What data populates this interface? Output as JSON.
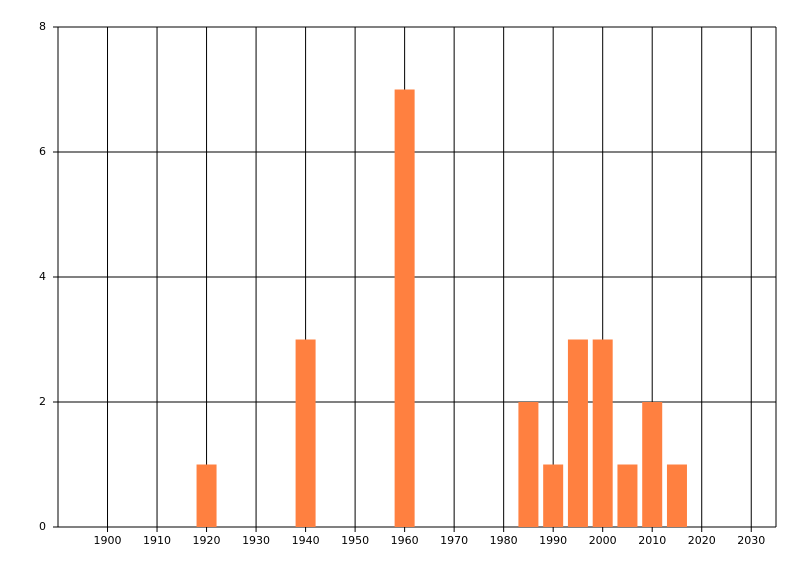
{
  "chart_data": {
    "type": "bar",
    "x": [
      1920,
      1940,
      1960,
      1985,
      1990,
      1995,
      2000,
      2005,
      2010,
      2015
    ],
    "values": [
      1,
      3,
      7,
      2,
      1,
      3,
      3,
      1,
      2,
      1
    ],
    "color": "#ff8040",
    "xlim": [
      1890,
      2035
    ],
    "xticks": [
      1900,
      1910,
      1920,
      1930,
      1940,
      1950,
      1960,
      1970,
      1980,
      1990,
      2000,
      2010,
      2020,
      2030
    ],
    "ylim": [
      0,
      8
    ],
    "yticks": [
      0,
      2,
      4,
      6,
      8
    ],
    "grid": true
  }
}
